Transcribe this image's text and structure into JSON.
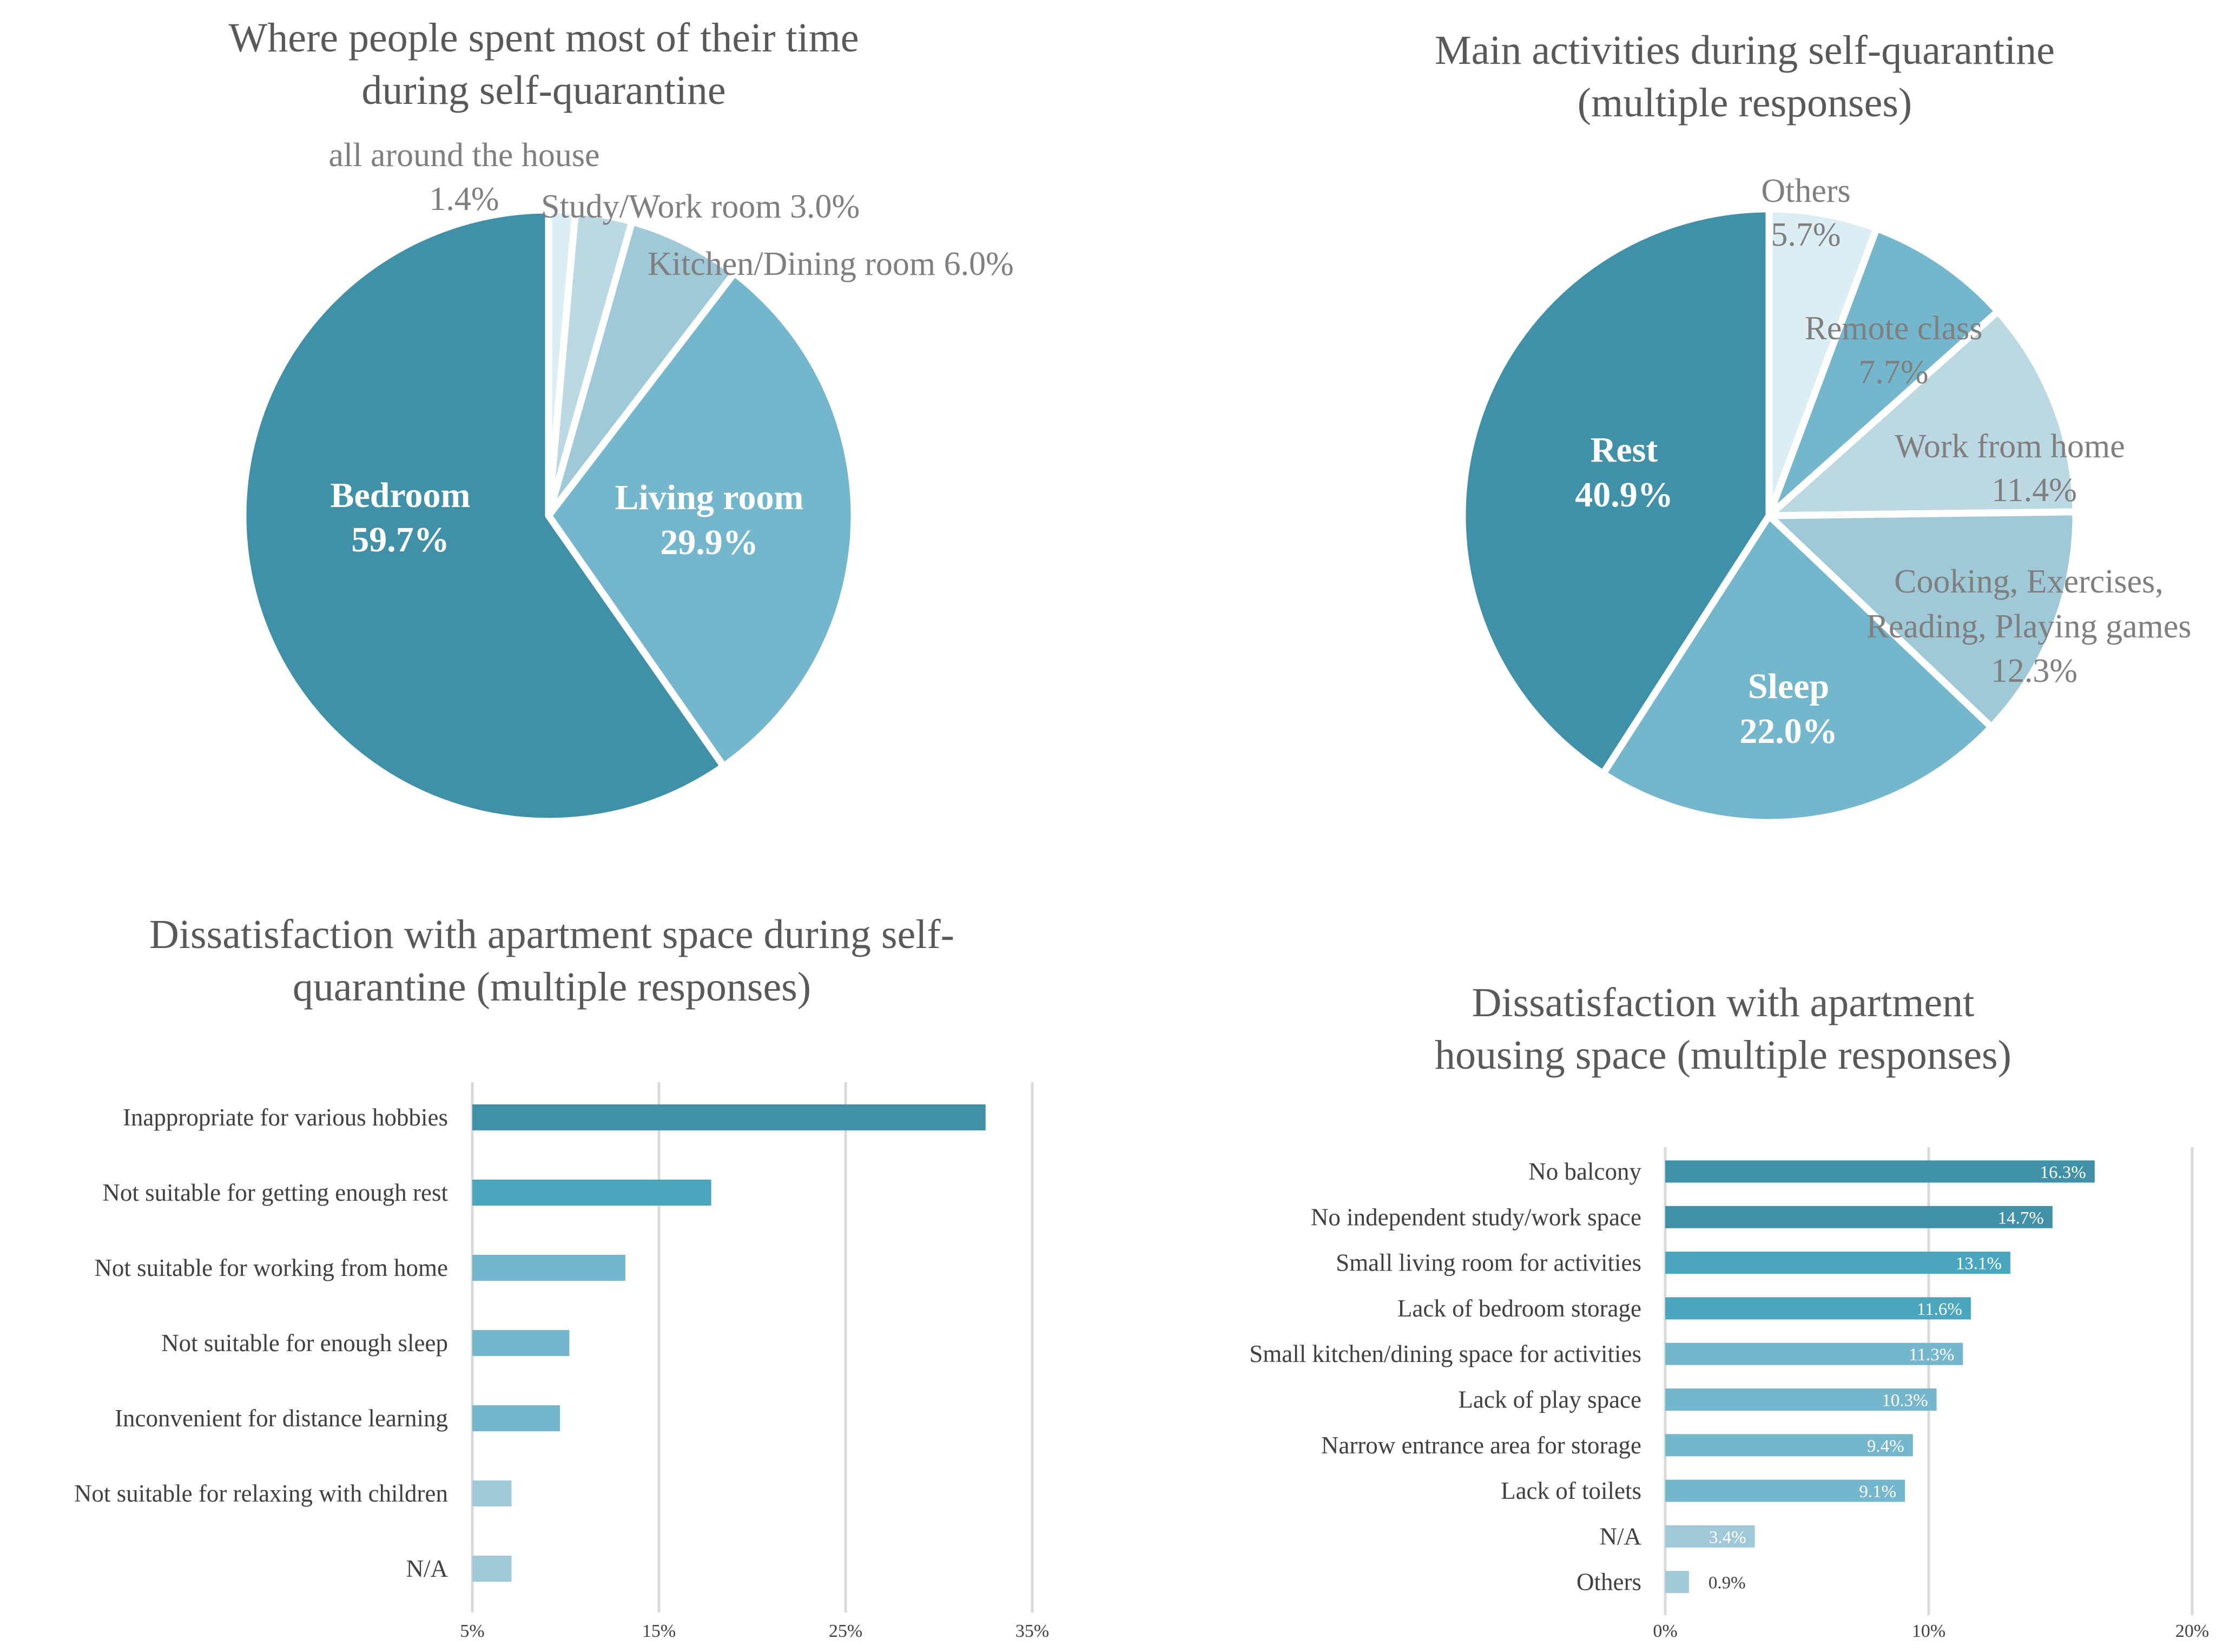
{
  "colors": {
    "dark": "#4091a7",
    "mid": "#4aa6bf",
    "medium": "#74b7cd",
    "light": "#a0c9d8",
    "lighter": "#bcd8e3",
    "lightest": "#dcedf3",
    "grid": "#d9d9d9"
  },
  "chart_data": [
    {
      "type": "pie",
      "title": [
        "Where people spent most of their time",
        "during self-quarantine"
      ],
      "slices": [
        {
          "label": [
            "all around the house"
          ],
          "value_label": "1.4%",
          "value": 1.4,
          "color": "#dcedf3",
          "inside": false
        },
        {
          "label": [
            "Study/Work room 3.0%"
          ],
          "value_label": "",
          "value": 3.0,
          "color": "#bcd8e3",
          "inside": false
        },
        {
          "label": [
            "Kitchen/Dining room 6.0%"
          ],
          "value_label": "",
          "value": 6.0,
          "color": "#a0c9d8",
          "inside": false
        },
        {
          "label": [
            "Living room"
          ],
          "value_label": "29.9%",
          "value": 29.9,
          "color": "#74b7cd",
          "inside": true
        },
        {
          "label": [
            "Bedroom"
          ],
          "value_label": "59.7%",
          "value": 59.7,
          "color": "#4091a7",
          "inside": true
        }
      ]
    },
    {
      "type": "pie",
      "title": [
        "Main activities during self-quarantine",
        "(multiple responses)"
      ],
      "slices": [
        {
          "label": [
            "Others"
          ],
          "value_label": "5.7%",
          "value": 5.7,
          "color": "#dcedf3",
          "inside": false
        },
        {
          "label": [
            "Remote class"
          ],
          "value_label": "7.7%",
          "value": 7.7,
          "color": "#74b7cd",
          "inside": false
        },
        {
          "label": [
            "Work from home"
          ],
          "value_label": "11.4%",
          "value": 11.4,
          "color": "#bcd8e3",
          "inside": false
        },
        {
          "label": [
            "Cooking, Exercises,",
            "Reading, Playing games"
          ],
          "value_label": "12.3%",
          "value": 12.3,
          "color": "#a0c9d8",
          "inside": false
        },
        {
          "label": [
            "Sleep"
          ],
          "value_label": "22.0%",
          "value": 22.0,
          "color": "#74b7cd",
          "inside": true
        },
        {
          "label": [
            "Rest"
          ],
          "value_label": "40.9%",
          "value": 40.9,
          "color": "#4091a7",
          "inside": true
        }
      ]
    },
    {
      "type": "bar",
      "orientation": "horizontal",
      "title": [
        "Dissatisfaction with apartment space during self-",
        "quarantine (multiple responses)"
      ],
      "categories": [
        "Inappropriate for various hobbies",
        "Not suitable for getting enough rest",
        "Not suitable for working from home",
        "Not suitable for enough sleep",
        "Inconvenient for distance learning",
        "Not suitable for relaxing with children",
        "N/A"
      ],
      "values": [
        32.5,
        17.8,
        13.2,
        10.2,
        9.7,
        7.1,
        7.1
      ],
      "colors": [
        "#4091a7",
        "#4aa6bf",
        "#74b7cd",
        "#74b7cd",
        "#74b7cd",
        "#a0c9d8",
        "#a0c9d8"
      ],
      "xlim": [
        5,
        35
      ],
      "xticks": [
        5,
        15,
        25,
        35
      ],
      "xtick_labels": [
        "5%",
        "15%",
        "25%",
        "35%"
      ],
      "grid": true
    },
    {
      "type": "bar",
      "orientation": "horizontal",
      "title": [
        "Dissatisfaction with apartment",
        "housing space (multiple responses)"
      ],
      "categories": [
        "No balcony",
        "No independent study/work space",
        "Small living room for activities",
        "Lack of bedroom storage",
        "Small kitchen/dining space for activities",
        "Lack of play space",
        "Narrow entrance area for storage",
        "Lack of toilets",
        "N/A",
        "Others"
      ],
      "values": [
        16.3,
        14.7,
        13.1,
        11.6,
        11.3,
        10.3,
        9.4,
        9.1,
        3.4,
        0.9
      ],
      "value_labels": [
        "16.3%",
        "14.7%",
        "13.1%",
        "11.6%",
        "11.3%",
        "10.3%",
        "9.4%",
        "9.1%",
        "3.4%",
        "0.9%"
      ],
      "colors": [
        "#4091a7",
        "#4091a7",
        "#4aa6bf",
        "#4aa6bf",
        "#74b7cd",
        "#74b7cd",
        "#74b7cd",
        "#74b7cd",
        "#a0c9d8",
        "#a0c9d8"
      ],
      "xlim": [
        0,
        20
      ],
      "xticks": [
        0,
        10,
        20
      ],
      "xtick_labels": [
        "0%",
        "10%",
        "20%"
      ],
      "grid": true
    }
  ]
}
